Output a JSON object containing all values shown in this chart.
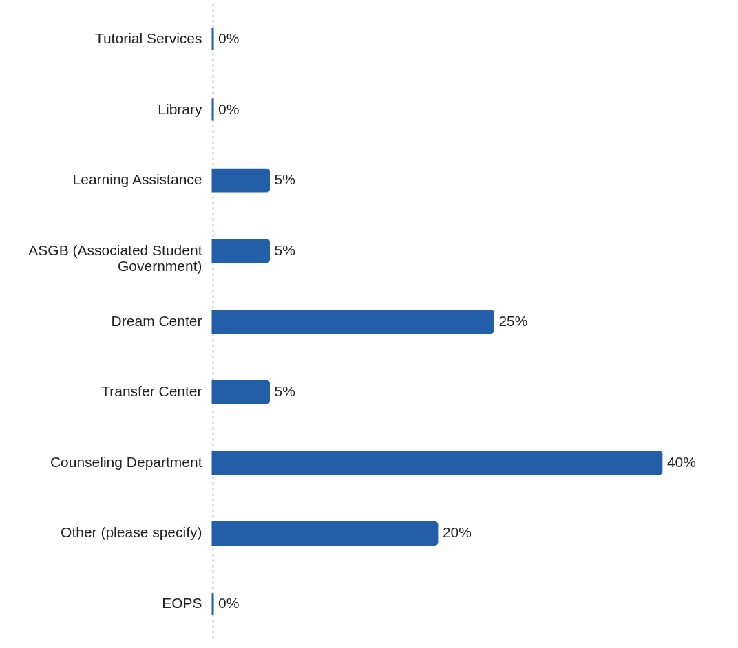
{
  "chart_data": {
    "type": "bar",
    "orientation": "horizontal",
    "categories": [
      "Tutorial Services",
      "Library",
      "Learning Assistance",
      "ASGB (Associated Student Government)",
      "Dream Center",
      "Transfer Center",
      "Counseling Department",
      "Other (please specify)",
      "EOPS"
    ],
    "values": [
      0,
      0,
      5,
      5,
      25,
      5,
      40,
      20,
      0
    ],
    "value_labels": [
      "0%",
      "0%",
      "5%",
      "5%",
      "25%",
      "5%",
      "40%",
      "20%",
      "0%"
    ],
    "color": "#235fa8",
    "grid": false
  }
}
